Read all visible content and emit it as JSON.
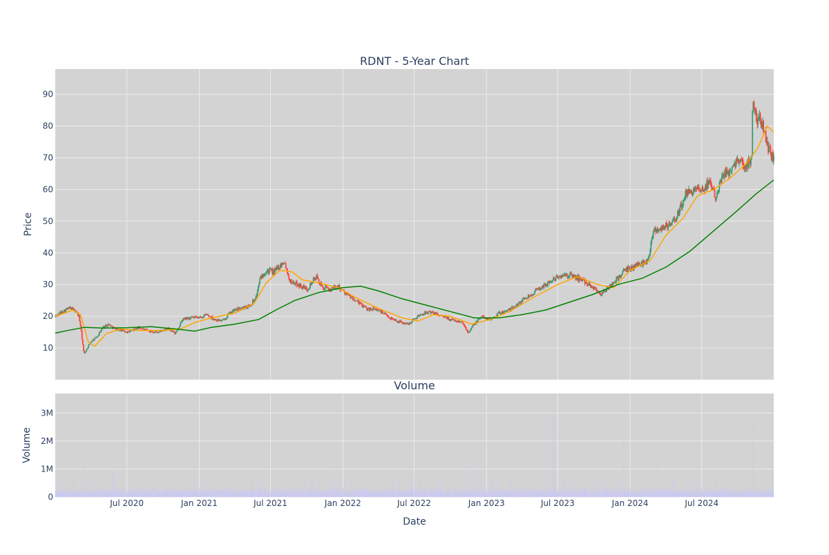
{
  "chart_data": [
    {
      "type": "candlestick",
      "title": "RDNT - 5-Year Chart",
      "xlabel": "",
      "ylabel": "Price",
      "x_range": [
        "2020-01-01",
        "2024-12-31"
      ],
      "ylim": [
        0,
        98
      ],
      "y_ticks": [
        10,
        20,
        30,
        40,
        50,
        60,
        70,
        80,
        90
      ],
      "background": "#d3d3d3",
      "grid": true,
      "colors": {
        "up": "#3d9970",
        "down": "#ff4136",
        "ma_short": "#ffa500",
        "ma_long": "#008000"
      },
      "series": [
        {
          "kind": "close",
          "points": [
            [
              "2020-01-01",
              20.0
            ],
            [
              "2020-01-20",
              21.5
            ],
            [
              "2020-02-05",
              22.5
            ],
            [
              "2020-02-20",
              22.0
            ],
            [
              "2020-03-01",
              20.0
            ],
            [
              "2020-03-05",
              17.0
            ],
            [
              "2020-03-10",
              12.0
            ],
            [
              "2020-03-14",
              8.0
            ],
            [
              "2020-03-20",
              9.5
            ],
            [
              "2020-04-01",
              12.0
            ],
            [
              "2020-04-15",
              13.5
            ],
            [
              "2020-05-01",
              16.5
            ],
            [
              "2020-05-15",
              17.5
            ],
            [
              "2020-06-01",
              16.0
            ],
            [
              "2020-06-20",
              15.5
            ],
            [
              "2020-07-05",
              15.0
            ],
            [
              "2020-08-01",
              16.5
            ],
            [
              "2020-08-20",
              15.5
            ],
            [
              "2020-09-15",
              15.0
            ],
            [
              "2020-10-15",
              16.0
            ],
            [
              "2020-11-01",
              14.5
            ],
            [
              "2020-11-20",
              19.0
            ],
            [
              "2020-12-10",
              19.5
            ],
            [
              "2021-01-01",
              19.5
            ],
            [
              "2021-01-20",
              20.5
            ],
            [
              "2021-02-10",
              19.0
            ],
            [
              "2021-03-01",
              18.5
            ],
            [
              "2021-03-15",
              20.5
            ],
            [
              "2021-04-01",
              22.0
            ],
            [
              "2021-04-20",
              22.5
            ],
            [
              "2021-05-10",
              23.5
            ],
            [
              "2021-05-25",
              26.0
            ],
            [
              "2021-06-05",
              32.0
            ],
            [
              "2021-06-20",
              34.5
            ],
            [
              "2021-07-10",
              34.0
            ],
            [
              "2021-07-25",
              36.0
            ],
            [
              "2021-08-05",
              37.5
            ],
            [
              "2021-08-20",
              31.0
            ],
            [
              "2021-09-10",
              30.0
            ],
            [
              "2021-10-01",
              28.5
            ],
            [
              "2021-10-25",
              32.5
            ],
            [
              "2021-11-10",
              29.0
            ],
            [
              "2021-12-01",
              28.5
            ],
            [
              "2021-12-20",
              29.5
            ],
            [
              "2022-01-10",
              27.0
            ],
            [
              "2022-02-01",
              25.0
            ],
            [
              "2022-03-01",
              22.5
            ],
            [
              "2022-04-01",
              22.0
            ],
            [
              "2022-05-01",
              19.5
            ],
            [
              "2022-05-20",
              18.5
            ],
            [
              "2022-06-15",
              17.5
            ],
            [
              "2022-07-10",
              20.0
            ],
            [
              "2022-08-01",
              21.5
            ],
            [
              "2022-09-01",
              20.5
            ],
            [
              "2022-10-01",
              19.0
            ],
            [
              "2022-11-01",
              18.0
            ],
            [
              "2022-11-15",
              15.0
            ],
            [
              "2022-12-01",
              17.5
            ],
            [
              "2022-12-20",
              20.0
            ],
            [
              "2023-01-10",
              19.0
            ],
            [
              "2023-02-01",
              21.0
            ],
            [
              "2023-03-01",
              22.0
            ],
            [
              "2023-04-01",
              25.0
            ],
            [
              "2023-05-01",
              27.5
            ],
            [
              "2023-06-01",
              30.0
            ],
            [
              "2023-07-01",
              32.5
            ],
            [
              "2023-08-01",
              33.0
            ],
            [
              "2023-09-01",
              31.5
            ],
            [
              "2023-10-01",
              29.0
            ],
            [
              "2023-10-20",
              27.0
            ],
            [
              "2023-11-15",
              30.0
            ],
            [
              "2023-12-15",
              34.0
            ],
            [
              "2024-01-15",
              36.0
            ],
            [
              "2024-02-15",
              37.5
            ],
            [
              "2024-02-28",
              47.0
            ],
            [
              "2024-03-20",
              48.0
            ],
            [
              "2024-04-15",
              49.0
            ],
            [
              "2024-05-01",
              52.0
            ],
            [
              "2024-05-20",
              58.0
            ],
            [
              "2024-06-10",
              60.0
            ],
            [
              "2024-07-01",
              59.0
            ],
            [
              "2024-07-20",
              63.0
            ],
            [
              "2024-08-05",
              58.0
            ],
            [
              "2024-08-20",
              64.0
            ],
            [
              "2024-09-10",
              66.0
            ],
            [
              "2024-10-01",
              70.0
            ],
            [
              "2024-10-20",
              67.0
            ],
            [
              "2024-11-05",
              70.0
            ],
            [
              "2024-11-08",
              91.0
            ],
            [
              "2024-11-15",
              83.0
            ],
            [
              "2024-11-25",
              82.0
            ],
            [
              "2024-12-05",
              80.0
            ],
            [
              "2024-12-15",
              73.0
            ],
            [
              "2024-12-31",
              70.0
            ]
          ]
        },
        {
          "kind": "ma_short",
          "points": [
            [
              "2020-01-01",
              20.0
            ],
            [
              "2020-02-15",
              22.0
            ],
            [
              "2020-03-05",
              20.5
            ],
            [
              "2020-03-25",
              12.0
            ],
            [
              "2020-04-10",
              10.5
            ],
            [
              "2020-05-10",
              14.5
            ],
            [
              "2020-06-15",
              16.0
            ],
            [
              "2020-08-01",
              15.5
            ],
            [
              "2020-10-01",
              15.5
            ],
            [
              "2020-11-15",
              16.0
            ],
            [
              "2020-12-20",
              18.0
            ],
            [
              "2021-02-01",
              19.5
            ],
            [
              "2021-04-01",
              21.0
            ],
            [
              "2021-05-20",
              24.0
            ],
            [
              "2021-06-20",
              30.5
            ],
            [
              "2021-07-25",
              34.5
            ],
            [
              "2021-08-25",
              34.0
            ],
            [
              "2021-09-20",
              31.5
            ],
            [
              "2021-11-01",
              30.5
            ],
            [
              "2021-12-20",
              29.0
            ],
            [
              "2022-02-01",
              26.0
            ],
            [
              "2022-04-01",
              22.5
            ],
            [
              "2022-06-01",
              19.5
            ],
            [
              "2022-07-10",
              18.5
            ],
            [
              "2022-08-20",
              20.5
            ],
            [
              "2022-10-01",
              20.0
            ],
            [
              "2022-11-25",
              17.5
            ],
            [
              "2023-01-10",
              19.0
            ],
            [
              "2023-03-01",
              21.5
            ],
            [
              "2023-05-01",
              26.0
            ],
            [
              "2023-07-01",
              30.0
            ],
            [
              "2023-08-20",
              32.5
            ],
            [
              "2023-10-10",
              30.0
            ],
            [
              "2023-11-20",
              29.0
            ],
            [
              "2024-01-01",
              34.5
            ],
            [
              "2024-02-20",
              37.5
            ],
            [
              "2024-04-01",
              45.5
            ],
            [
              "2024-05-15",
              51.0
            ],
            [
              "2024-06-20",
              58.0
            ],
            [
              "2024-08-01",
              60.0
            ],
            [
              "2024-09-15",
              64.0
            ],
            [
              "2024-10-25",
              68.5
            ],
            [
              "2024-11-20",
              73.0
            ],
            [
              "2024-12-15",
              80.0
            ],
            [
              "2024-12-31",
              78.0
            ]
          ]
        },
        {
          "kind": "ma_long",
          "points": [
            [
              "2020-01-01",
              14.7
            ],
            [
              "2020-02-01",
              15.5
            ],
            [
              "2020-03-15",
              16.5
            ],
            [
              "2020-05-01",
              16.3
            ],
            [
              "2020-07-01",
              16.4
            ],
            [
              "2020-09-01",
              16.7
            ],
            [
              "2020-11-01",
              16.0
            ],
            [
              "2020-12-20",
              15.3
            ],
            [
              "2021-02-01",
              16.5
            ],
            [
              "2021-04-01",
              17.5
            ],
            [
              "2021-06-01",
              19.0
            ],
            [
              "2021-07-15",
              22.0
            ],
            [
              "2021-09-01",
              25.0
            ],
            [
              "2021-11-01",
              27.5
            ],
            [
              "2022-01-01",
              29.0
            ],
            [
              "2022-02-15",
              29.5
            ],
            [
              "2022-04-01",
              28.0
            ],
            [
              "2022-06-01",
              25.5
            ],
            [
              "2022-08-01",
              23.5
            ],
            [
              "2022-10-01",
              21.5
            ],
            [
              "2022-12-01",
              19.5
            ],
            [
              "2023-02-01",
              19.5
            ],
            [
              "2023-04-01",
              20.5
            ],
            [
              "2023-06-01",
              22.0
            ],
            [
              "2023-08-01",
              24.5
            ],
            [
              "2023-10-01",
              27.0
            ],
            [
              "2023-12-01",
              30.0
            ],
            [
              "2024-02-01",
              32.0
            ],
            [
              "2024-04-01",
              35.5
            ],
            [
              "2024-06-01",
              40.5
            ],
            [
              "2024-08-01",
              47.0
            ],
            [
              "2024-10-01",
              53.5
            ],
            [
              "2024-11-15",
              58.5
            ],
            [
              "2024-12-31",
              63.0
            ]
          ]
        }
      ]
    },
    {
      "type": "bar",
      "title": "Volume",
      "xlabel": "Date",
      "ylabel": "Volume",
      "ylim": [
        0,
        3700000
      ],
      "y_ticks": [
        0,
        1000000,
        2000000,
        3000000
      ],
      "y_tick_labels": [
        "0",
        "1M",
        "2M",
        "3M"
      ],
      "x_ticks": [
        "2020-07-01",
        "2021-01-01",
        "2021-07-01",
        "2022-01-01",
        "2022-07-01",
        "2023-01-01",
        "2023-07-01",
        "2024-01-01",
        "2024-07-01"
      ],
      "x_tick_labels": [
        "Jul 2020",
        "Jan 2021",
        "Jul 2021",
        "Jan 2022",
        "Jul 2022",
        "Jan 2023",
        "Jul 2023",
        "Jan 2024",
        "Jul 2024"
      ],
      "bar_color": "#c9c9f2",
      "typical_volume": 250000,
      "spikes": [
        [
          "2020-03-15",
          1250000
        ],
        [
          "2020-05-25",
          1100000
        ],
        [
          "2020-12-20",
          1050000
        ],
        [
          "2021-05-15",
          750000
        ],
        [
          "2021-12-01",
          1300000
        ],
        [
          "2022-11-10",
          1200000
        ],
        [
          "2022-12-10",
          2300000
        ],
        [
          "2023-06-20",
          3500000
        ],
        [
          "2023-06-25",
          3000000
        ],
        [
          "2023-10-01",
          2000000
        ],
        [
          "2023-12-15",
          2100000
        ],
        [
          "2024-02-28",
          2900000
        ],
        [
          "2024-03-10",
          1700000
        ],
        [
          "2024-06-20",
          1900000
        ],
        [
          "2024-11-08",
          2700000
        ],
        [
          "2024-12-28",
          1100000
        ]
      ]
    }
  ]
}
